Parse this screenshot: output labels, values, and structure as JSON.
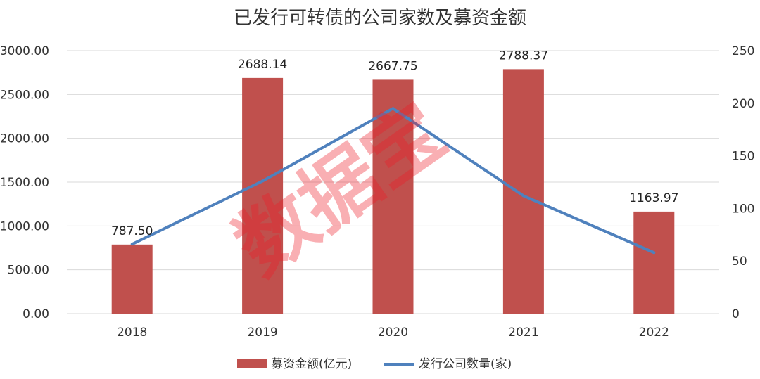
{
  "chart_data": {
    "type": "bar",
    "title": "已发行可转债的公司家数及募资金额",
    "categories": [
      "2018",
      "2019",
      "2020",
      "2021",
      "2022"
    ],
    "series": [
      {
        "name": "募资金额(亿元)",
        "kind": "bar",
        "axis": "left",
        "color": "#c0504d",
        "values": [
          787.5,
          2688.14,
          2667.75,
          2788.37,
          1163.97
        ],
        "labels": [
          "787.50",
          "2688.14",
          "2667.75",
          "2788.37",
          "1163.97"
        ]
      },
      {
        "name": "发行公司数量(家)",
        "kind": "line",
        "axis": "right",
        "color": "#4f81bd",
        "values": [
          66,
          126,
          195,
          112,
          58
        ]
      }
    ],
    "y_left": {
      "lim": [
        0,
        3000
      ],
      "ticks": [
        "0.00",
        "500.00",
        "1000.00",
        "1500.00",
        "2000.00",
        "2500.00",
        "3000.00"
      ]
    },
    "y_right": {
      "lim": [
        0,
        250
      ],
      "ticks": [
        "0",
        "50",
        "100",
        "150",
        "200",
        "250"
      ]
    },
    "grid": true,
    "legend": "bottom",
    "watermark": "数据宝"
  }
}
